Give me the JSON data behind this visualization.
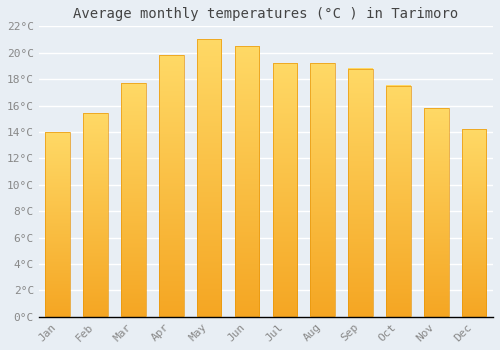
{
  "title": "Average monthly temperatures (°C ) in Tarimoro",
  "months": [
    "Jan",
    "Feb",
    "Mar",
    "Apr",
    "May",
    "Jun",
    "Jul",
    "Aug",
    "Sep",
    "Oct",
    "Nov",
    "Dec"
  ],
  "values": [
    14.0,
    15.4,
    17.7,
    19.8,
    21.0,
    20.5,
    19.2,
    19.2,
    18.8,
    17.5,
    15.8,
    14.2
  ],
  "bar_color_bottom": "#F5A623",
  "bar_color_top": "#FFD966",
  "background_color": "#E8EEF4",
  "grid_color": "#ffffff",
  "ylim": [
    0,
    22
  ],
  "ytick_interval": 2,
  "title_fontsize": 10,
  "tick_fontsize": 8,
  "font_family": "monospace",
  "tick_color": "#888888",
  "title_color": "#444444"
}
